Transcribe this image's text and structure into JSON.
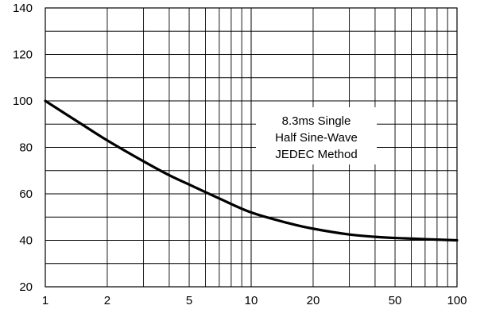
{
  "chart_data": {
    "type": "line",
    "x_scale": "log",
    "xlim": [
      1,
      100
    ],
    "ylim": [
      20,
      140
    ],
    "grid": true,
    "x_tick_labels": [
      {
        "value": 1,
        "label": "1"
      },
      {
        "value": 2,
        "label": "2"
      },
      {
        "value": 5,
        "label": "5"
      },
      {
        "value": 10,
        "label": "10"
      },
      {
        "value": 20,
        "label": "20"
      },
      {
        "value": 50,
        "label": "50"
      },
      {
        "value": 100,
        "label": "100"
      }
    ],
    "y_tick_labels": [
      {
        "value": 20,
        "label": "20"
      },
      {
        "value": 40,
        "label": "40"
      },
      {
        "value": 60,
        "label": "60"
      },
      {
        "value": 80,
        "label": "80"
      },
      {
        "value": 100,
        "label": "100"
      },
      {
        "value": 120,
        "label": "120"
      },
      {
        "value": 140,
        "label": "140"
      }
    ],
    "y_minor_step": 10,
    "series": [
      {
        "x": [
          1,
          1.5,
          2,
          3,
          4,
          5,
          7,
          10,
          15,
          20,
          30,
          40,
          50,
          70,
          100
        ],
        "y": [
          100,
          90,
          83,
          74,
          68,
          64,
          58,
          52,
          47.5,
          45,
          42.5,
          41.5,
          41,
          40.5,
          40
        ]
      }
    ],
    "annotation": [
      "8.3ms Single",
      "Half Sine-Wave",
      "JEDEC Method"
    ],
    "annotation_position": "right-center",
    "line_color": "#000000",
    "grid_color": "#000000"
  }
}
